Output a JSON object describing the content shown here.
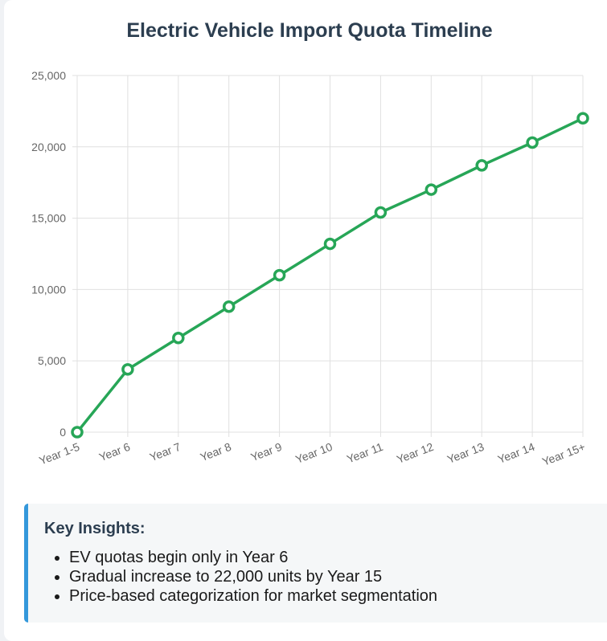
{
  "chart_title": "Electric Vehicle Import Quota Timeline",
  "chart_data": {
    "type": "line",
    "title": "Electric Vehicle Import Quota Timeline",
    "categories": [
      "Year 1-5",
      "Year 6",
      "Year 7",
      "Year 8",
      "Year 9",
      "Year 10",
      "Year 11",
      "Year 12",
      "Year 13",
      "Year 14",
      "Year 15+"
    ],
    "values": [
      0,
      4400,
      6600,
      8800,
      11000,
      13200,
      15400,
      17000,
      18700,
      20300,
      22000
    ],
    "ylim": [
      0,
      25000
    ],
    "yticks": [
      "0",
      "5,000",
      "10,000",
      "15,000",
      "20,000",
      "25,000"
    ],
    "ytick_values": [
      0,
      5000,
      10000,
      15000,
      20000,
      25000
    ],
    "grid": true,
    "line_color": "#27a657",
    "xlabel": "",
    "ylabel": ""
  },
  "insights": {
    "title": "Key Insights:",
    "items": [
      "EV quotas begin only in Year 6",
      "Gradual increase to 22,000 units by Year 15",
      "Price-based categorization for market segmentation"
    ]
  },
  "colors": {
    "title": "#2c3e50",
    "accent": "#3498db",
    "line": "#27a657",
    "grid": "#e0e0e0"
  }
}
